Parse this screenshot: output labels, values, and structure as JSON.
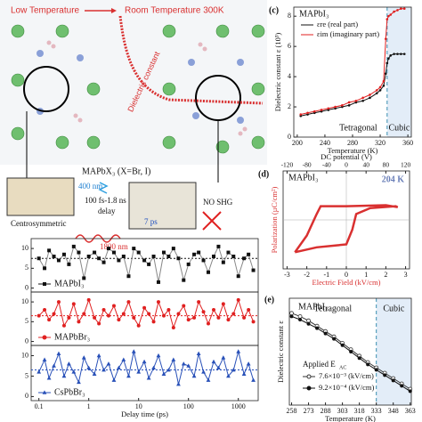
{
  "illustration": {
    "low_temp": "Low Temperature",
    "room_temp": "Room Temperature 300K",
    "dielectric": "Dielectric constant",
    "compound": "MAPbX₃ (X=Br, I)",
    "pump": "400 nm",
    "delay1": "100 fs-1.8 ns",
    "delay2": "delay",
    "probe": "1800 nm",
    "time": "7 ps",
    "no_shg": "NO SHG",
    "centro": "Centrosymmetric"
  },
  "chart_data": [
    {
      "type": "line",
      "label": "(c)",
      "title": "MAPbI₃",
      "xlabel": "Temperature (K)",
      "ylabel": "Dielectric constant ε (10³)",
      "xlim": [
        195,
        365
      ],
      "xticks": [
        200,
        240,
        280,
        320,
        360
      ],
      "ylim": [
        0,
        8.6
      ],
      "yticks": [
        0,
        2,
        4,
        6,
        8
      ],
      "transition": 330,
      "regions": [
        "Tetragonal",
        "Cubic"
      ],
      "x": [
        205,
        215,
        225,
        235,
        245,
        255,
        265,
        275,
        285,
        295,
        305,
        315,
        320,
        325,
        328,
        330,
        332,
        335,
        340,
        345,
        350,
        355
      ],
      "series": [
        {
          "name": "εre (real part)",
          "color": "#111111",
          "values": [
            1.4,
            1.5,
            1.6,
            1.7,
            1.8,
            1.9,
            2.0,
            2.1,
            2.3,
            2.4,
            2.6,
            2.9,
            3.1,
            3.4,
            4.2,
            4.9,
            5.2,
            5.4,
            5.5,
            5.5,
            5.5,
            5.5
          ]
        },
        {
          "name": "εim (imaginary part)",
          "color": "#e02020",
          "values": [
            1.5,
            1.6,
            1.7,
            1.8,
            1.9,
            2.0,
            2.1,
            2.3,
            2.4,
            2.6,
            2.8,
            3.1,
            3.3,
            3.7,
            6.5,
            7.8,
            8.0,
            8.1,
            8.3,
            8.4,
            8.5,
            8.5
          ]
        }
      ]
    },
    {
      "type": "loop",
      "label": "(d)",
      "title": "MAPbI₃",
      "temp": "204 K",
      "xlabel": "Electric Field (kV/cm)",
      "x2label": "DC potential (V)",
      "ylabel": "Polarization (µC/cm²)",
      "xlim": [
        -3.2,
        3.2
      ],
      "xticks": [
        -3,
        -2,
        -1,
        0,
        1,
        2,
        3
      ],
      "x2lim": [
        -128,
        128
      ],
      "x2ticks": [
        -120,
        -80,
        -40,
        0,
        40,
        80,
        120
      ],
      "ylim": [
        -25,
        25
      ],
      "series": [
        {
          "color": "#d93030",
          "x": [
            -2.6,
            -1.5,
            -0.5,
            0,
            0.3,
            0.5,
            1.2,
            2.5,
            2.6,
            2,
            0,
            -1.3,
            -1.5,
            -2,
            -2.6
          ],
          "values": [
            -16.5,
            -14,
            -13,
            -12.5,
            -5,
            3,
            6,
            7,
            6.5,
            7.5,
            7,
            7,
            3,
            -8,
            -16.5
          ]
        }
      ]
    },
    {
      "type": "line",
      "xlog": true,
      "xlim": [
        0.07,
        2500
      ],
      "ylim": [
        -1,
        12.5
      ],
      "yticks": [
        0,
        5,
        10
      ],
      "mean": 7.5,
      "x": [
        0.1,
        0.13,
        0.16,
        0.2,
        0.25,
        0.32,
        0.4,
        0.5,
        0.63,
        0.8,
        1,
        1.3,
        1.6,
        2,
        2.5,
        3.2,
        4,
        5,
        6.3,
        8,
        10,
        13,
        16,
        20,
        25,
        32,
        40,
        50,
        63,
        80,
        100,
        130,
        160,
        200,
        250,
        320,
        400,
        500,
        630,
        800,
        1000,
        1300,
        1600,
        2000
      ],
      "series": [
        {
          "name": "MAPbI₃",
          "color": "#111111",
          "marker": "square",
          "values": [
            7.5,
            5,
            9.5,
            8,
            7,
            8.5,
            6,
            10.5,
            9,
            2.5,
            8,
            9,
            7.5,
            6.5,
            10,
            9,
            7,
            8,
            3,
            10,
            9,
            7,
            6,
            8,
            1.5,
            9,
            8,
            10,
            7.5,
            2,
            6,
            8.5,
            9,
            7,
            4,
            8,
            10.5,
            6.5,
            9,
            8,
            3,
            7.5,
            8.5,
            4.5
          ]
        }
      ]
    },
    {
      "type": "line",
      "xlog": true,
      "xlim": [
        0.07,
        2500
      ],
      "ylim": [
        -1,
        12.5
      ],
      "yticks": [
        0,
        5,
        10
      ],
      "mean": 6.5,
      "x": [
        0.1,
        0.13,
        0.16,
        0.2,
        0.25,
        0.32,
        0.4,
        0.5,
        0.63,
        0.8,
        1,
        1.3,
        1.6,
        2,
        2.5,
        3.2,
        4,
        5,
        6.3,
        8,
        10,
        13,
        16,
        20,
        25,
        32,
        40,
        50,
        63,
        80,
        100,
        130,
        160,
        200,
        250,
        320,
        400,
        500,
        630,
        800,
        1000,
        1300,
        1600,
        2000
      ],
      "series": [
        {
          "name": "MAPbBr₃",
          "color": "#e02020",
          "marker": "circle",
          "values": [
            6.5,
            8,
            5.5,
            7,
            10,
            4,
            6,
            9.5,
            5,
            7,
            10.5,
            6,
            4.5,
            8,
            6.5,
            9,
            5.5,
            7,
            10,
            6,
            4,
            8.5,
            7,
            5,
            10,
            6.5,
            8,
            3.5,
            7,
            9,
            5.5,
            6,
            10,
            7.5,
            4.5,
            8,
            6,
            9.5,
            5.5,
            7,
            10.5,
            6,
            8,
            5
          ]
        }
      ]
    },
    {
      "type": "line",
      "xlog": true,
      "xlim": [
        0.07,
        2500
      ],
      "xticks": [
        0.1,
        1,
        10,
        100,
        1000
      ],
      "xlabel": "Delay time (ps)",
      "ylim": [
        -1,
        12.5
      ],
      "yticks": [
        0,
        5,
        10
      ],
      "mean": 6.5,
      "x": [
        0.1,
        0.13,
        0.16,
        0.2,
        0.25,
        0.32,
        0.4,
        0.5,
        0.63,
        0.8,
        1,
        1.3,
        1.6,
        2,
        2.5,
        3.2,
        4,
        5,
        6.3,
        8,
        10,
        13,
        16,
        20,
        25,
        32,
        40,
        50,
        63,
        80,
        100,
        130,
        160,
        200,
        250,
        320,
        400,
        500,
        630,
        800,
        1000,
        1300,
        1600,
        2000
      ],
      "series": [
        {
          "name": "CsPbBr₃",
          "color": "#2850b8",
          "marker": "triangle",
          "values": [
            6,
            9,
            4.5,
            7.5,
            10.5,
            5,
            8,
            6,
            3.5,
            9.5,
            7,
            5.5,
            10,
            6.5,
            8,
            4,
            7,
            9,
            5,
            11,
            6,
            8.5,
            4.5,
            7,
            10,
            5.5,
            6.5,
            9,
            3,
            8,
            7.5,
            5,
            10.5,
            6,
            4,
            8.5,
            7,
            9.5,
            5,
            6.5,
            11,
            5.5,
            8,
            4
          ]
        }
      ]
    },
    {
      "type": "line",
      "label": "(e)",
      "title": "MAPbI₃",
      "xlabel": "Temperature (K)",
      "ylabel": "Dielectric constant ε",
      "xlim": [
        256,
        364
      ],
      "xticks": [
        258,
        273,
        288,
        303,
        318,
        333,
        348,
        363
      ],
      "ylim": [
        0,
        10
      ],
      "transition": 333,
      "regions": [
        "Tetragonal",
        "Cubic"
      ],
      "applied": "Applied E",
      "applied_sub": "AC",
      "x": [
        258,
        265.5,
        273,
        280.5,
        288,
        295.5,
        303,
        310.5,
        318,
        325.5,
        333,
        340.5,
        348,
        355.5,
        363
      ],
      "series": [
        {
          "name": "7.6×10⁻³ (kV/cm)",
          "color": "#333333",
          "marker": "open",
          "values": [
            8.6,
            8.3,
            7.9,
            7.4,
            6.9,
            6.4,
            5.8,
            5.2,
            4.6,
            4.0,
            3.5,
            3.0,
            2.5,
            2.0,
            1.5
          ]
        },
        {
          "name": "9.2×10⁻⁴ (kV/cm)",
          "color": "#111111",
          "marker": "filled",
          "values": [
            8.3,
            8.0,
            7.6,
            7.2,
            6.7,
            6.2,
            5.6,
            5.0,
            4.4,
            3.8,
            3.3,
            2.8,
            2.3,
            1.8,
            1.3
          ]
        }
      ]
    }
  ]
}
